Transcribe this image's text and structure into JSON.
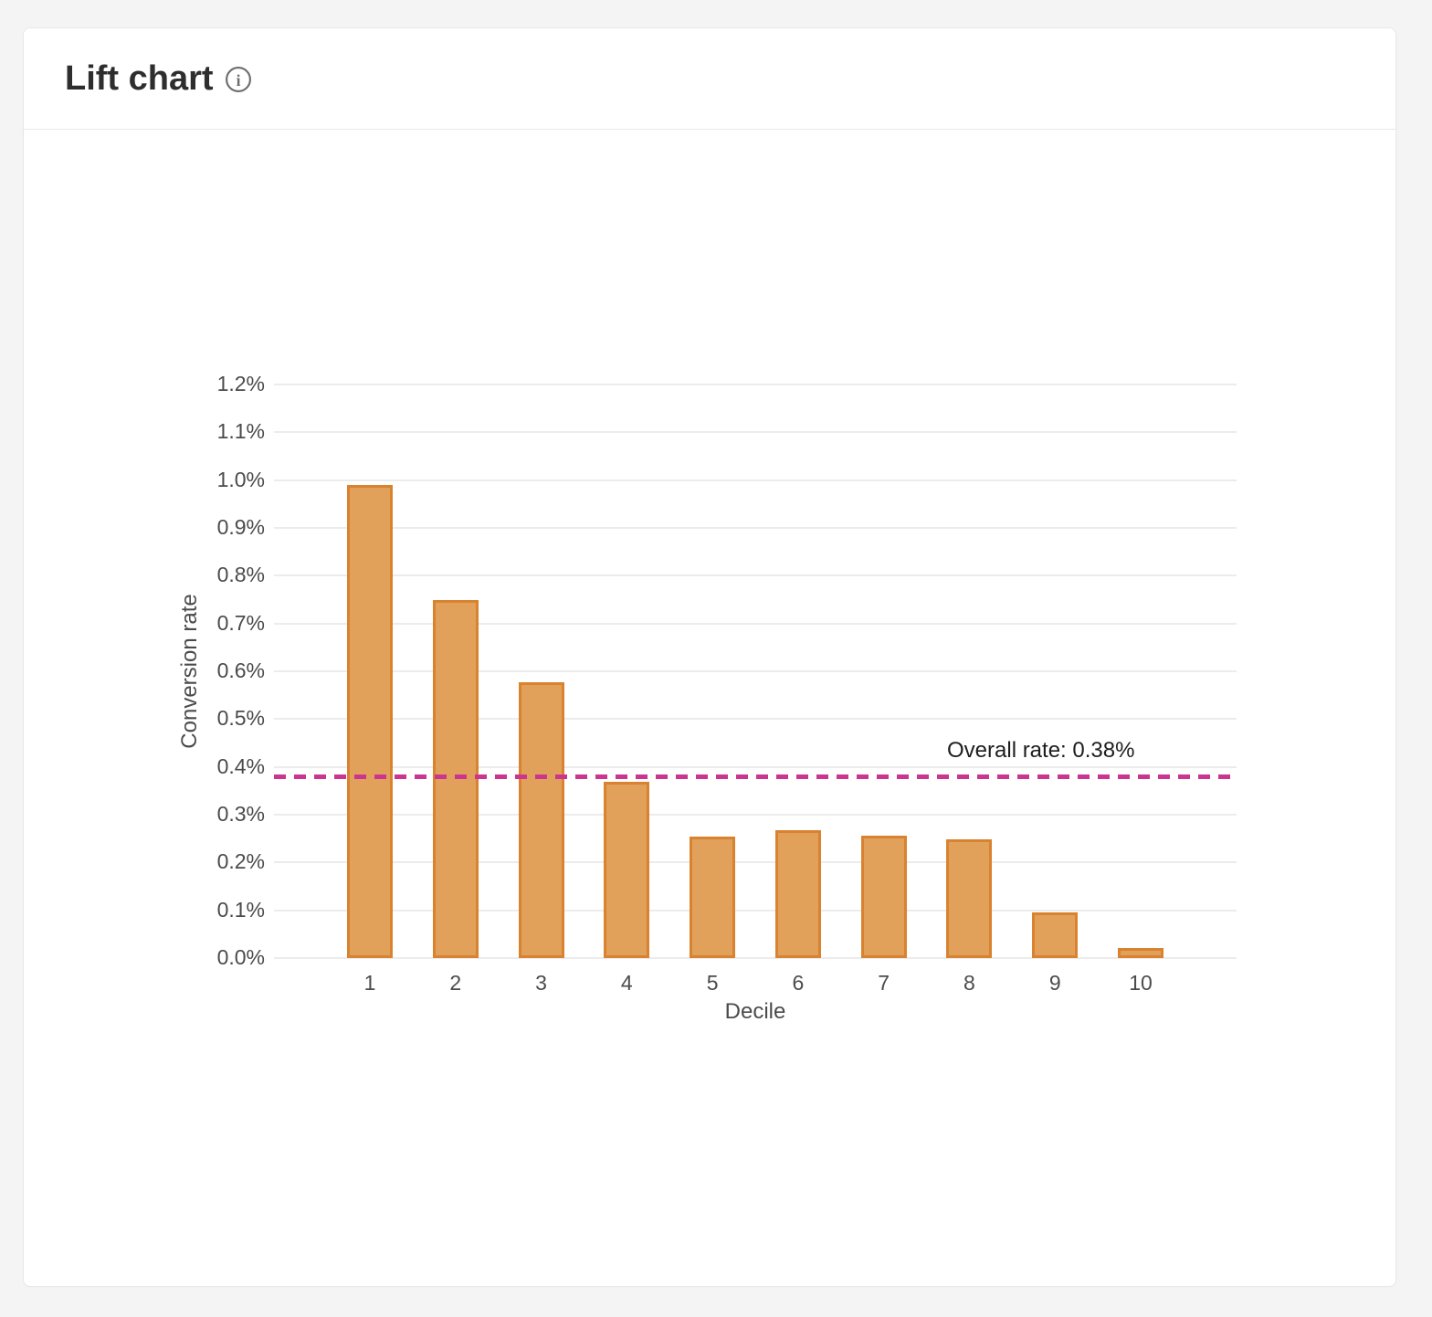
{
  "page": {
    "background_color": "#f4f4f4"
  },
  "card": {
    "title": "Lift chart",
    "info_icon": "info-icon",
    "info_icon_color": "#6e6e6e"
  },
  "chart_data": {
    "type": "bar",
    "title": "Lift chart",
    "xlabel": "Decile",
    "ylabel": "Conversion rate",
    "categories": [
      "1",
      "2",
      "3",
      "4",
      "5",
      "6",
      "7",
      "8",
      "9",
      "10"
    ],
    "values": [
      0.99,
      0.75,
      0.577,
      0.368,
      0.254,
      0.268,
      0.256,
      0.248,
      0.096,
      0.021
    ],
    "value_unit": "%",
    "ylim": [
      0,
      1.2
    ],
    "ytick_step": 0.1,
    "ytick_labels": [
      "0.0%",
      "0.1%",
      "0.2%",
      "0.3%",
      "0.4%",
      "0.5%",
      "0.6%",
      "0.7%",
      "0.8%",
      "0.9%",
      "1.0%",
      "1.1%",
      "1.2%"
    ],
    "grid": true,
    "legend": "none",
    "bar_fill_color": "#e2a15b",
    "bar_border_color": "#d9822f",
    "gridline_color": "#ececec",
    "reference_line": {
      "value": 0.38,
      "label": "Overall rate: 0.38%",
      "color": "#cb3590",
      "style": "dashed"
    }
  }
}
